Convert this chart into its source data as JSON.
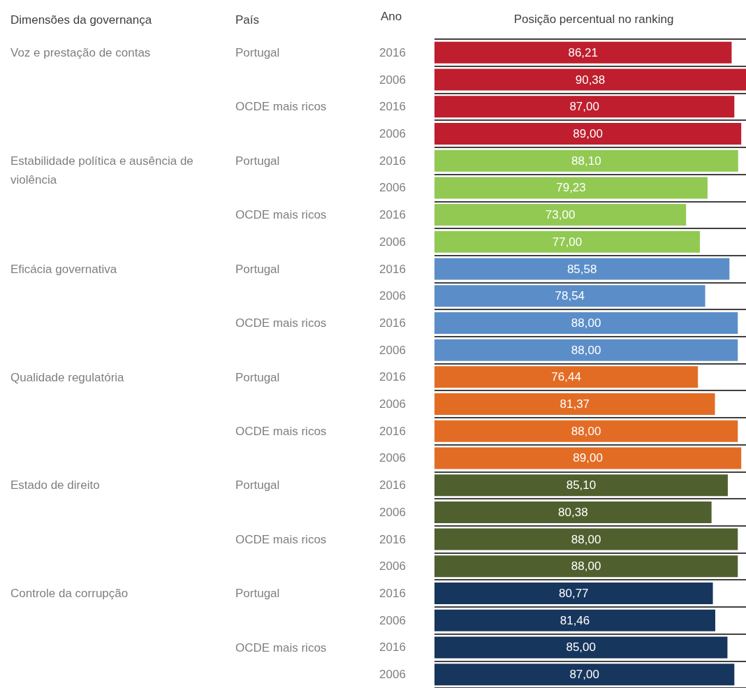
{
  "chart_data": {
    "type": "bar",
    "orientation": "horizontal",
    "title": "Posição percentual no ranking",
    "ylabel": "Ano",
    "categories": [
      "2016",
      "2006",
      "2016",
      "2006",
      "2016",
      "2006",
      "2016",
      "2006",
      "2016",
      "2006",
      "2016",
      "2006",
      "2016",
      "2006",
      "2016",
      "2006",
      "2016",
      "2006",
      "2016",
      "2006",
      "2016",
      "2006",
      "2016",
      "2006"
    ],
    "values": [
      86.21,
      90.38,
      87.0,
      89.0,
      88.1,
      79.23,
      73.0,
      77.0,
      85.58,
      78.54,
      88.0,
      88.0,
      76.44,
      81.37,
      88.0,
      89.0,
      85.1,
      80.38,
      88.0,
      88.0,
      80.77,
      81.46,
      85.0,
      87.0
    ],
    "value_labels": [
      "86,21",
      "90,38",
      "87,00",
      "89,00",
      "88,10",
      "79,23",
      "73,00",
      "77,00",
      "85,58",
      "78,54",
      "88,00",
      "88,00",
      "76,44",
      "81,37",
      "88,00",
      "89,00",
      "85,10",
      "80,38",
      "88,00",
      "88,00",
      "80,77",
      "81,46",
      "85,00",
      "87,00"
    ],
    "colors": [
      "#be1e2d",
      "#be1e2d",
      "#be1e2d",
      "#be1e2d",
      "#92c953",
      "#92c953",
      "#92c953",
      "#92c953",
      "#5b8ec9",
      "#5b8ec9",
      "#5b8ec9",
      "#5b8ec9",
      "#e36c25",
      "#e36c25",
      "#e36c25",
      "#e36c25",
      "#4f602e",
      "#4f602e",
      "#4f602e",
      "#4f602e",
      "#17365d",
      "#17365d",
      "#17365d",
      "#17365d"
    ],
    "annotations": [
      "Dimensões da governança",
      "País",
      "Voz e prestação de contas",
      "Portugal",
      "OCDE mais ricos",
      "Estabilidade política e ausência de violência",
      "Portugal",
      "OCDE mais ricos",
      "Eficácia governativa",
      "Portugal",
      "OCDE mais ricos",
      "Qualidade regulatória",
      "Portugal",
      "OCDE mais ricos",
      "Estado de direito",
      "Portugal",
      "OCDE mais ricos",
      "Controle da corrupção",
      "Portugal",
      "OCDE mais ricos"
    ],
    "grid": "y",
    "tick_labels": "y"
  }
}
